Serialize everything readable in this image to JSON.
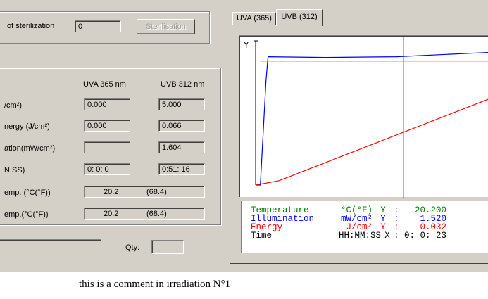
{
  "top": {
    "sterilization_label": "of sterilization",
    "sterilization_value": "0",
    "sterilisation_button": "Sterilisation"
  },
  "measurements": {
    "col_uva": "UVA 365 nm",
    "col_uvb": "UVB 312 nm",
    "rows": [
      {
        "label": "/cm²)",
        "uva": "0.000",
        "uvb": "5.000"
      },
      {
        "label": "nergy (J/cm²)",
        "uva": "0.000",
        "uvb": "0.066"
      },
      {
        "label": "ation(mW/cm²)",
        "uva": "",
        "uvb": "1.604"
      },
      {
        "label": "N:SS)",
        "uva": "0: 0:  0",
        "uvb": "0:51: 16"
      }
    ],
    "temps": [
      {
        "label": "emp. (°C(°F))",
        "c": "20.2",
        "f": "(68.4)"
      },
      {
        "label": "emp.(°C(°F))",
        "c": "20.2",
        "f": "(68.4)"
      }
    ],
    "qty_label": "Qty:",
    "qty_value": ""
  },
  "tabs": [
    {
      "label": "UVA (365)",
      "active": false
    },
    {
      "label": "UVB (312)",
      "active": true
    }
  ],
  "chart_data": {
    "type": "line",
    "ylabel": "Y",
    "xlim": [
      0,
      100
    ],
    "ylim": [
      0,
      100
    ],
    "cursor_x": 63,
    "series": [
      {
        "color": "#0000ff",
        "points": [
          [
            0,
            0
          ],
          [
            2,
            0
          ],
          [
            4.4,
            72
          ],
          [
            5.3,
            89
          ],
          [
            30,
            88.5
          ],
          [
            60,
            89
          ],
          [
            100,
            92
          ]
        ]
      },
      {
        "color": "#008000",
        "points": [
          [
            2,
            86
          ],
          [
            100,
            86
          ]
        ]
      },
      {
        "color": "#ff0000",
        "points": [
          [
            0,
            0
          ],
          [
            10,
            3
          ],
          [
            100,
            60
          ]
        ]
      }
    ]
  },
  "readout": {
    "temperature": {
      "name": "Temperature",
      "unit": "°C(°F)",
      "axis": "Y",
      "value": "20.200",
      "color": "#008000"
    },
    "illumination": {
      "name": "Illumination",
      "unit": "mW/cm²",
      "axis": "Y",
      "value": "1.520",
      "color": "#0000ff"
    },
    "energy": {
      "name": "Energy",
      "unit": "J/cm²",
      "axis": "Y",
      "value": "0.032",
      "color": "#ff0000"
    },
    "time": {
      "name": "Time",
      "unit": "HH:MM:SS",
      "axis": "X",
      "value": "0: 0: 23",
      "color": "#000000"
    }
  },
  "comment": "this is a comment in irradiation N°1"
}
